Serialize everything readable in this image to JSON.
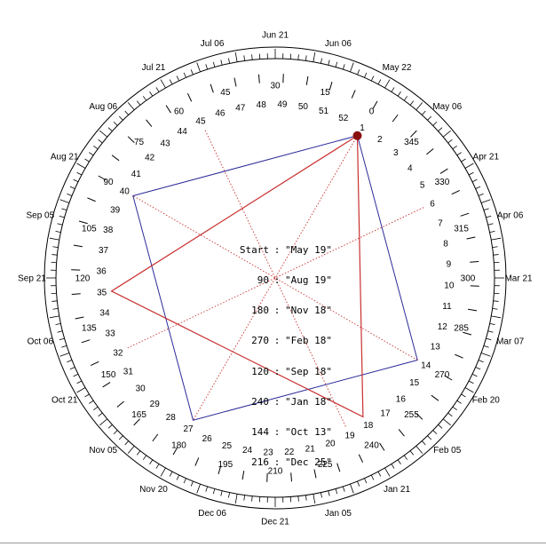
{
  "legend": [
    {
      "key": "Start",
      "value": "\"May 19\""
    },
    {
      "key": "90",
      "value": "\"Aug 19\""
    },
    {
      "key": "180",
      "value": "\"Nov 18\""
    },
    {
      "key": "270",
      "value": "\"Feb 18\""
    },
    {
      "key": "120",
      "value": "\"Sep 18\""
    },
    {
      "key": "240",
      "value": "\"Jan 18\""
    },
    {
      "key": "144",
      "value": "\"Oct 13\""
    },
    {
      "key": "216",
      "value": "\"Dec 25\""
    }
  ],
  "separator": ":",
  "outer_dates": [
    {
      "label": "Jun 21",
      "deg": 0
    },
    {
      "label": "Jun 06",
      "deg": 15
    },
    {
      "label": "May 22",
      "deg": 30
    },
    {
      "label": "May 06",
      "deg": 45
    },
    {
      "label": "Apr 21",
      "deg": 60
    },
    {
      "label": "Apr 06",
      "deg": 75
    },
    {
      "label": "Mar 21",
      "deg": 90
    },
    {
      "label": "Mar 07",
      "deg": 105
    },
    {
      "label": "Feb 20",
      "deg": 120
    },
    {
      "label": "Feb 05",
      "deg": 135
    },
    {
      "label": "Jan 21",
      "deg": 150
    },
    {
      "label": "Jan 05",
      "deg": 165
    },
    {
      "label": "Dec 21",
      "deg": 180
    },
    {
      "label": "Dec 06",
      "deg": 195
    },
    {
      "label": "Nov 20",
      "deg": 210
    },
    {
      "label": "Nov 05",
      "deg": 225
    },
    {
      "label": "Oct 21",
      "deg": 240
    },
    {
      "label": "Oct 06",
      "deg": 255
    },
    {
      "label": "Sep 21",
      "deg": 270
    },
    {
      "label": "Sep 05",
      "deg": 285
    },
    {
      "label": "Aug 21",
      "deg": 300
    },
    {
      "label": "Aug 06",
      "deg": 315
    },
    {
      "label": "Jul 21",
      "deg": 330
    },
    {
      "label": "Jul 06",
      "deg": 345
    }
  ],
  "degree_labels": [
    "0",
    "15",
    "30",
    "45",
    "60",
    "75",
    "90",
    "105",
    "120",
    "135",
    "150",
    "165",
    "180",
    "195",
    "210",
    "225",
    "240",
    "255",
    "270",
    "285",
    "300",
    "315",
    "330",
    "345"
  ],
  "week_labels": [
    "1",
    "2",
    "3",
    "4",
    "5",
    "6",
    "7",
    "8",
    "9",
    "10",
    "11",
    "12",
    "13",
    "14",
    "15",
    "16",
    "17",
    "18",
    "19",
    "20",
    "21",
    "22",
    "23",
    "24",
    "25",
    "26",
    "27",
    "28",
    "29",
    "30",
    "31",
    "32",
    "33",
    "34",
    "35",
    "36",
    "37",
    "38",
    "39",
    "40",
    "41",
    "42",
    "43",
    "44",
    "45",
    "46",
    "47",
    "48",
    "49",
    "50",
    "51",
    "52"
  ],
  "start_deg": 30,
  "square_blue": [
    "1",
    "14",
    "27",
    "40"
  ],
  "triangle_red": [
    "1",
    "18",
    "35"
  ],
  "dotted_lines": [
    {
      "from": "1",
      "to": "27"
    },
    {
      "from": "14",
      "to": "40"
    },
    {
      "from": "6",
      "to": "32"
    },
    {
      "from": "19",
      "to": "45"
    }
  ],
  "colors": {
    "blue": "#2b2b9a",
    "red": "#c83030",
    "dark_red": "#8a1010",
    "ink": "#000000"
  }
}
